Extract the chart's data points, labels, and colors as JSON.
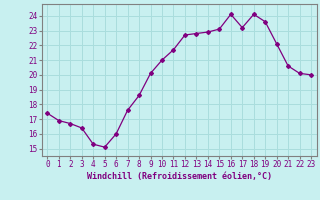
{
  "x": [
    0,
    1,
    2,
    3,
    4,
    5,
    6,
    7,
    8,
    9,
    10,
    11,
    12,
    13,
    14,
    15,
    16,
    17,
    18,
    19,
    20,
    21,
    22,
    23
  ],
  "y": [
    17.4,
    16.9,
    16.7,
    16.4,
    15.3,
    15.1,
    16.0,
    17.6,
    18.6,
    20.1,
    21.0,
    21.7,
    22.7,
    22.8,
    22.9,
    23.1,
    24.1,
    23.2,
    24.1,
    23.6,
    22.1,
    20.6,
    20.1,
    20.0
  ],
  "line_color": "#800080",
  "marker": "D",
  "marker_size": 2.0,
  "bg_color": "#c8f0f0",
  "grid_color": "#aadddd",
  "xlabel": "Windchill (Refroidissement éolien,°C)",
  "xlabel_color": "#800080",
  "ylabel_ticks": [
    15,
    16,
    17,
    18,
    19,
    20,
    21,
    22,
    23,
    24
  ],
  "xlim": [
    -0.5,
    23.5
  ],
  "ylim": [
    14.5,
    24.8
  ],
  "tick_color": "#800080",
  "spine_color": "#808080",
  "tick_fontsize": 5.5,
  "xlabel_fontsize": 6.0
}
